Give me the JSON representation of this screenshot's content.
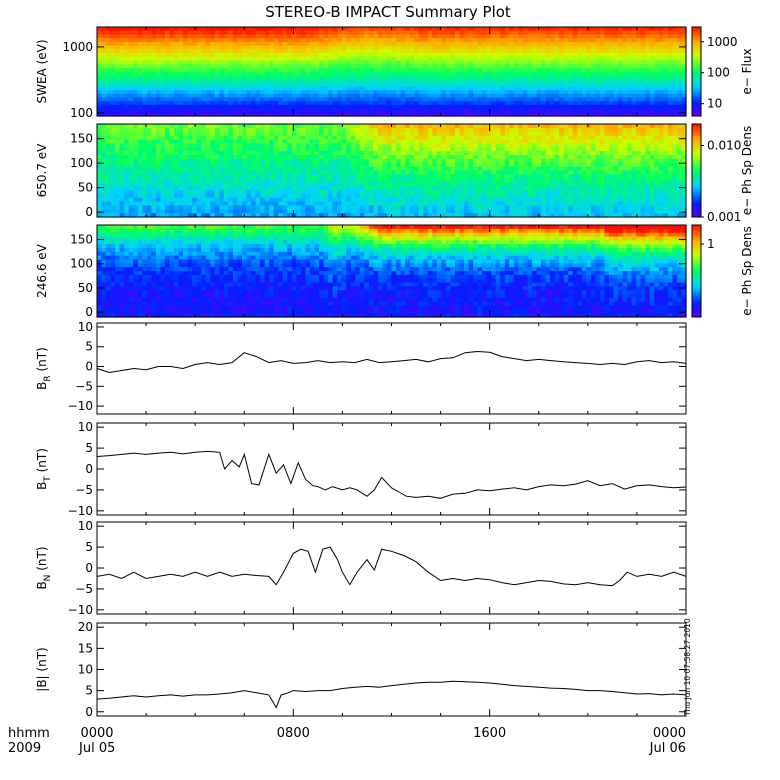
{
  "title": "STEREO-B IMPACT Summary Plot",
  "time_axis": {
    "row1_labels": [
      "hhmm",
      "0000",
      "0800",
      "1600",
      "0000"
    ],
    "row2_labels": [
      "2009",
      "Jul 05",
      "",
      "",
      "Jul 06"
    ],
    "range_hours": [
      0,
      24
    ],
    "major_ticks_hours": [
      0,
      8,
      16,
      24
    ]
  },
  "timestamp": "Thu Jun 10 07:58:27 2010",
  "chart_data": [
    {
      "type": "heatmap",
      "ylabel": "SWEA (eV)",
      "yscale": "log",
      "ylim": [
        90,
        2000
      ],
      "yticks": [
        100,
        1000
      ],
      "ytick_labels": [
        "100",
        "1000"
      ],
      "colorbar": {
        "label": "e− Flux",
        "scale": "log",
        "range": [
          4,
          3000
        ],
        "ticks": [
          10,
          100,
          1000
        ],
        "tick_labels": [
          "10",
          "100",
          "1000"
        ]
      }
    },
    {
      "type": "heatmap",
      "ylabel": "650.7 eV",
      "ylim": [
        -10,
        180
      ],
      "yticks": [
        0,
        50,
        100,
        150
      ],
      "ytick_labels": [
        "0",
        "50",
        "100",
        "150"
      ],
      "colorbar": {
        "label": "e− Ph Sp Dens",
        "scale": "log",
        "range": [
          0.001,
          0.02
        ],
        "ticks": [
          0.001,
          0.01
        ],
        "tick_labels": [
          "0.001",
          "0.010"
        ]
      }
    },
    {
      "type": "heatmap",
      "ylabel": "246.6 eV",
      "ylim": [
        -10,
        180
      ],
      "yticks": [
        0,
        50,
        100,
        150
      ],
      "ytick_labels": [
        "0",
        "50",
        "100",
        "150"
      ],
      "colorbar": {
        "label": "e− Ph Sp Dens",
        "scale": "log",
        "range": [
          0.03,
          2.5
        ],
        "ticks": [
          1
        ],
        "tick_labels": [
          "1"
        ]
      }
    },
    {
      "type": "line",
      "ylabel": "B_R (nT)",
      "ylabel_main": "B",
      "ylabel_sub": "R",
      "ylabel_unit": "(nT)",
      "ylim": [
        -12,
        11
      ],
      "yticks": [
        -10,
        -5,
        0,
        5,
        10
      ],
      "ytick_labels": [
        "−10",
        "−5",
        "0",
        "5",
        "10"
      ],
      "x": [
        0,
        0.5,
        1,
        1.5,
        2,
        2.5,
        3,
        3.5,
        4,
        4.5,
        5,
        5.5,
        6,
        6.5,
        7,
        7.5,
        8,
        8.5,
        9,
        9.5,
        10,
        10.5,
        11,
        11.5,
        12,
        12.5,
        13,
        13.5,
        14,
        14.5,
        15,
        15.5,
        16,
        16.5,
        17,
        17.5,
        18,
        18.5,
        19,
        19.5,
        20,
        20.5,
        21,
        21.5,
        22,
        22.5,
        23,
        23.5,
        24
      ],
      "y": [
        -0.5,
        -1.5,
        -1,
        -0.5,
        -0.8,
        0,
        0,
        -0.5,
        0.5,
        1,
        0.5,
        1,
        3.5,
        2.5,
        1,
        1.5,
        0.8,
        1,
        1.5,
        1,
        1.2,
        1,
        1.8,
        1,
        1.2,
        1.5,
        1.8,
        1.2,
        2,
        2.2,
        3.5,
        3.8,
        3.6,
        2.5,
        2,
        1.5,
        1.8,
        1.5,
        1.2,
        1,
        0.8,
        0.5,
        0.8,
        0.5,
        1.2,
        1.5,
        1,
        1.2,
        0.8
      ]
    },
    {
      "type": "line",
      "ylabel": "B_T (nT)",
      "ylabel_main": "B",
      "ylabel_sub": "T",
      "ylabel_unit": "(nT)",
      "ylim": [
        -11,
        11
      ],
      "yticks": [
        -10,
        -5,
        0,
        5,
        10
      ],
      "ytick_labels": [
        "−10",
        "−5",
        "0",
        "5",
        "10"
      ],
      "x": [
        0,
        0.5,
        1,
        1.5,
        2,
        2.5,
        3,
        3.5,
        4,
        4.5,
        5,
        5.2,
        5.5,
        5.8,
        6,
        6.3,
        6.6,
        7,
        7.3,
        7.6,
        7.9,
        8.2,
        8.5,
        8.8,
        9,
        9.3,
        9.6,
        10,
        10.3,
        10.6,
        11,
        11.3,
        11.6,
        12,
        12.3,
        12.6,
        13,
        13.5,
        14,
        14.5,
        15,
        15.5,
        16,
        16.5,
        17,
        17.5,
        18,
        18.5,
        19,
        19.5,
        20,
        20.5,
        21,
        21.5,
        22,
        22.5,
        23,
        23.5,
        24
      ],
      "y": [
        3,
        3.2,
        3.5,
        3.8,
        3.5,
        3.8,
        4,
        3.6,
        4,
        4.2,
        4,
        0,
        2,
        0.5,
        3.5,
        -3.5,
        -3.8,
        3.5,
        -1,
        1,
        -3.5,
        1.5,
        -2.5,
        -4,
        -4.2,
        -5,
        -4.2,
        -5,
        -4.5,
        -5,
        -6.5,
        -5,
        -2,
        -4.5,
        -5.5,
        -6.5,
        -6.8,
        -6.5,
        -7,
        -6,
        -5.8,
        -5,
        -5.2,
        -4.8,
        -4.5,
        -5,
        -4.2,
        -3.8,
        -4,
        -3.6,
        -2.8,
        -4,
        -3.5,
        -4.8,
        -4,
        -3.8,
        -4.2,
        -4.5,
        -4.3
      ]
    },
    {
      "type": "line",
      "ylabel": "B_N (nT)",
      "ylabel_main": "B",
      "ylabel_sub": "N",
      "ylabel_unit": "(nT)",
      "ylim": [
        -11,
        11
      ],
      "yticks": [
        -10,
        -5,
        0,
        5,
        10
      ],
      "ytick_labels": [
        "−10",
        "−5",
        "0",
        "5",
        "10"
      ],
      "x": [
        0,
        0.5,
        1,
        1.5,
        2,
        2.5,
        3,
        3.5,
        4,
        4.5,
        5,
        5.5,
        6,
        6.5,
        7,
        7.3,
        7.6,
        8,
        8.3,
        8.6,
        8.9,
        9.2,
        9.5,
        9.8,
        10,
        10.3,
        10.6,
        11,
        11.3,
        11.6,
        12,
        12.5,
        13,
        13.5,
        14,
        14.5,
        15,
        15.5,
        16,
        16.5,
        17,
        17.5,
        18,
        18.5,
        19,
        19.5,
        20,
        20.5,
        21,
        21.3,
        21.6,
        22,
        22.5,
        23,
        23.5,
        24
      ],
      "y": [
        -2,
        -1.5,
        -2.5,
        -1,
        -2.5,
        -2,
        -1.5,
        -2,
        -1,
        -2,
        -1,
        -2,
        -1.5,
        -1.8,
        -2,
        -4,
        -1,
        3.5,
        4.5,
        4,
        -1,
        4.5,
        5,
        2,
        -1,
        -4,
        -1,
        2,
        -0.5,
        4.5,
        4,
        3,
        1.5,
        -1,
        -3,
        -2.5,
        -3,
        -2.5,
        -2.8,
        -3.5,
        -4,
        -3.5,
        -3,
        -3.2,
        -3.8,
        -4,
        -3.5,
        -4,
        -4.2,
        -3,
        -1,
        -2,
        -1.5,
        -2,
        -1,
        -2
      ]
    },
    {
      "type": "line",
      "ylabel": "|B| (nT)",
      "ylabel_main": "|B|",
      "ylabel_sub": "",
      "ylabel_unit": "(nT)",
      "ylim": [
        -1,
        21
      ],
      "yticks": [
        0,
        5,
        10,
        15,
        20
      ],
      "ytick_labels": [
        "0",
        "5",
        "10",
        "15",
        "20"
      ],
      "x": [
        0,
        0.5,
        1,
        1.5,
        2,
        2.5,
        3,
        3.5,
        4,
        4.5,
        5,
        5.5,
        6,
        6.5,
        7,
        7.3,
        7.5,
        7.8,
        8,
        8.5,
        9,
        9.5,
        10,
        10.5,
        11,
        11.5,
        12,
        12.5,
        13,
        13.5,
        14,
        14.5,
        15,
        15.5,
        16,
        16.5,
        17,
        17.5,
        18,
        18.5,
        19,
        19.5,
        20,
        20.5,
        21,
        21.5,
        22,
        22.5,
        23,
        23.5,
        24
      ],
      "y": [
        3,
        3.2,
        3.5,
        3.8,
        3.5,
        3.8,
        4,
        3.7,
        4,
        4,
        4.2,
        4.5,
        5,
        4.5,
        4,
        1,
        4,
        4.5,
        5,
        4.8,
        5,
        5,
        5.5,
        5.8,
        6,
        5.8,
        6.2,
        6.5,
        6.8,
        7,
        7,
        7.2,
        7.1,
        7,
        6.8,
        6.5,
        6.2,
        6,
        5.8,
        5.6,
        5.5,
        5.3,
        5,
        5,
        4.8,
        4.5,
        4.2,
        4.3,
        4,
        4.2,
        4
      ]
    }
  ]
}
